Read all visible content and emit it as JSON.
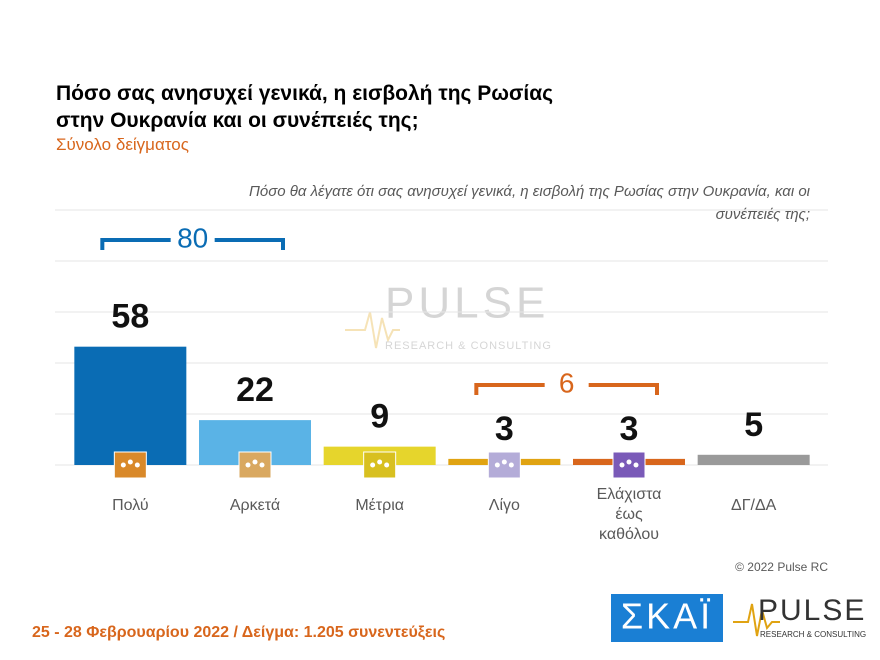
{
  "chart_data": {
    "type": "bar",
    "title": "Πόσο σας ανησυχεί γενικά, η εισβολή της Ρωσίας στην Ουκρανία και οι συνέπειές της;",
    "subtitle": "Σύνολο δείγματος",
    "question": "Πόσο θα λέγατε ότι σας ανησυχεί γενικά, η εισβολή της Ρωσίας στην Ουκρανία, και οι συνέπειές της;",
    "categories": [
      "Πολύ",
      "Αρκετά",
      "Μέτρια",
      "Λίγο",
      "Ελάχιστα έως καθόλου",
      "ΔΓ/ΔΑ"
    ],
    "values": [
      58,
      22,
      9,
      3,
      3,
      5
    ],
    "colors": [
      "#0a6cb4",
      "#5ab3e6",
      "#e6d52c",
      "#e0a312",
      "#d8661c",
      "#9a9a9a"
    ],
    "ylim": [
      0,
      125
    ],
    "yticks": [
      0,
      25,
      50,
      75,
      100,
      125
    ],
    "grid": true,
    "brackets": [
      {
        "label": "80",
        "color": "#0a6cb4"
      },
      {
        "label": "6",
        "color": "#d8661c"
      }
    ],
    "copyright": "© 2022 Pulse RC",
    "footer": "25 - 28 Φεβρουαρίου 2022 / Δείγμα: 1.205 συνεντεύξεις",
    "logos": {
      "skai": "ΣΚΑΪ",
      "pulse": "PULSE",
      "pulse_tag": "RESEARCH & CONSULTING"
    }
  }
}
